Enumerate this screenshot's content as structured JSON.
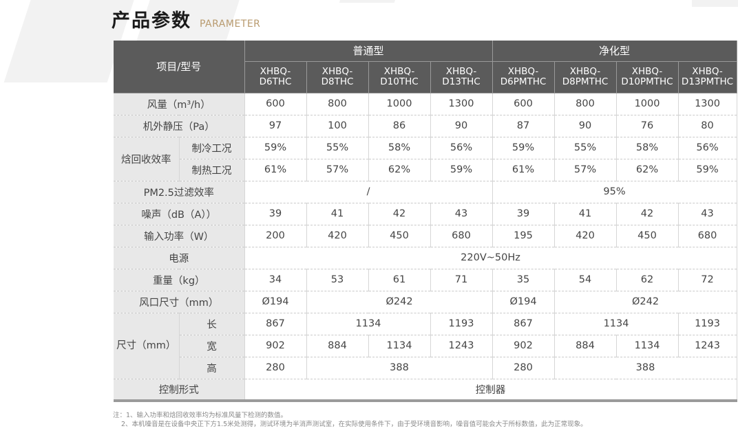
{
  "header": {
    "title": "产品参数",
    "subtitle": "PARAMETER"
  },
  "table": {
    "corner_label": "项目/型号",
    "groups": [
      "普通型",
      "净化型"
    ],
    "models": [
      "XHBQ-D6THC",
      "XHBQ-D8THC",
      "XHBQ-D10THC",
      "XHBQ-D13THC",
      "XHBQ-D6PMTHC",
      "XHBQ-D8PMTHC",
      "XHBQ-D10PMTHC",
      "XHBQ-D13PMTHC"
    ],
    "airflow": {
      "label": "风量（m³/h）",
      "values": [
        "600",
        "800",
        "1000",
        "1300",
        "600",
        "800",
        "1000",
        "1300"
      ]
    },
    "static_pressure": {
      "label": "机外静压（Pa）",
      "values": [
        "97",
        "100",
        "86",
        "90",
        "87",
        "90",
        "76",
        "80"
      ]
    },
    "enthalpy": {
      "label": "焓回收效率",
      "cooling": {
        "label": "制冷工况",
        "values": [
          "59%",
          "55%",
          "58%",
          "56%",
          "59%",
          "55%",
          "58%",
          "56%"
        ]
      },
      "heating": {
        "label": "制热工况",
        "values": [
          "61%",
          "57%",
          "62%",
          "59%",
          "61%",
          "57%",
          "62%",
          "59%"
        ]
      }
    },
    "pm25": {
      "label": "PM2.5过滤效率",
      "normal": "/",
      "purify": "95%"
    },
    "noise": {
      "label": "噪声（dB（A））",
      "values": [
        "39",
        "41",
        "42",
        "43",
        "39",
        "41",
        "42",
        "43"
      ]
    },
    "power": {
      "label": "输入功率（W）",
      "values": [
        "200",
        "420",
        "450",
        "680",
        "195",
        "420",
        "450",
        "680"
      ]
    },
    "supply": {
      "label": "电源",
      "value": "220V~50Hz"
    },
    "weight": {
      "label": "重量（kg）",
      "values": [
        "34",
        "53",
        "61",
        "71",
        "35",
        "54",
        "62",
        "72"
      ]
    },
    "duct": {
      "label": "风口尺寸（mm）",
      "a": "Ø194",
      "b": "Ø242",
      "c": "Ø194",
      "d": "Ø242"
    },
    "size": {
      "label": "尺寸（mm）",
      "length": {
        "label": "长",
        "v1": "867",
        "v2": "1134",
        "v3": "1193",
        "v4": "867",
        "v5": "1134",
        "v6": "1193"
      },
      "width": {
        "label": "宽",
        "values": [
          "902",
          "884",
          "1134",
          "1243",
          "902",
          "884",
          "1134",
          "1243"
        ]
      },
      "height": {
        "label": "高",
        "v1": "280",
        "v2": "388",
        "v3": "280",
        "v4": "388"
      }
    },
    "control": {
      "label": "控制形式",
      "value": "控制器"
    }
  },
  "notes": [
    "注：1、输入功率和焓回收效率均为标准风量下检测的数值。",
    "2、本机噪音是在设备中央正下方1.5米处测得，测试环境为半消声测试室，在实际使用条件下，由于受环境音影响，噪音值可能会大于所标数值，此为正常现象。"
  ]
}
